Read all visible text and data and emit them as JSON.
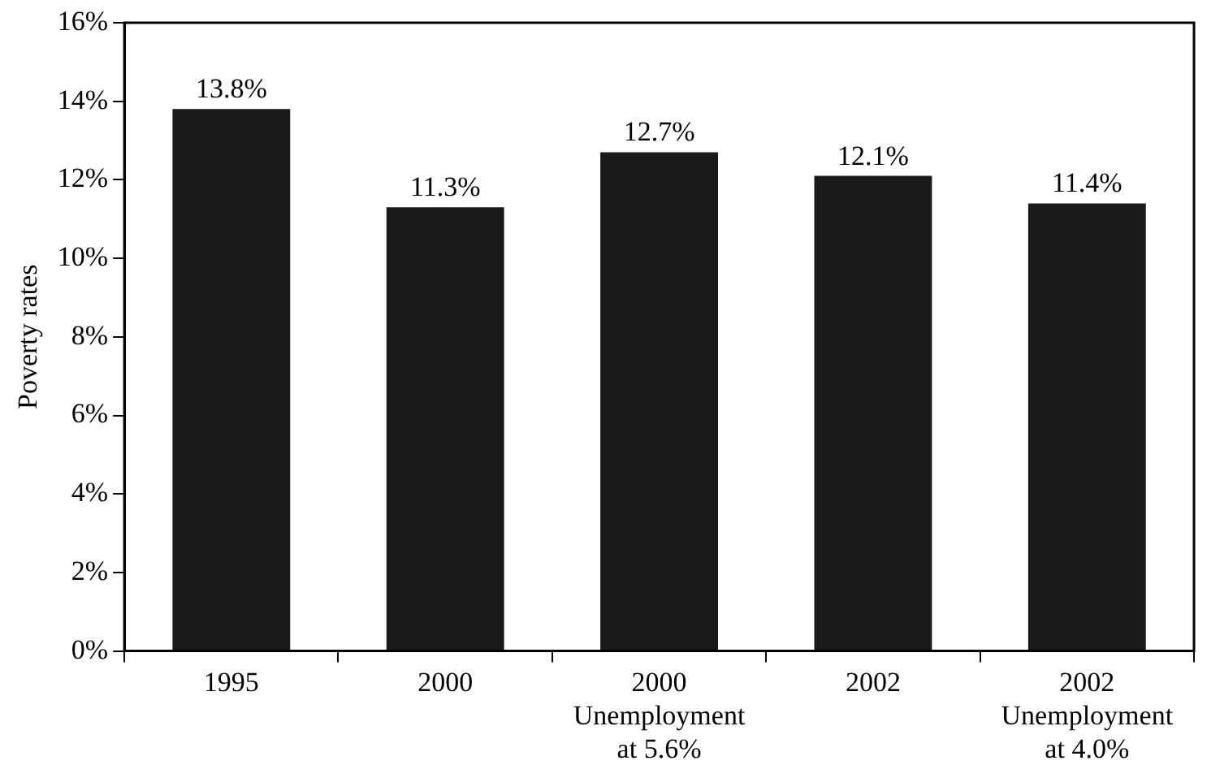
{
  "chart_data": {
    "type": "bar",
    "ylabel": "Poverty rates",
    "categories": [
      "1995",
      "2000",
      "2000\nUnemployment\nat 5.6%",
      "2002",
      "2002\nUnemployment\nat 4.0%"
    ],
    "values": [
      13.8,
      11.3,
      12.7,
      12.1,
      11.4
    ],
    "value_labels": [
      "13.8%",
      "11.3%",
      "12.7%",
      "12.1%",
      "11.4%"
    ],
    "color": "#1a1a1a",
    "ylim": [
      0,
      16
    ],
    "yticks": [
      {
        "value": 0,
        "label": "0%"
      },
      {
        "value": 2,
        "label": "2%"
      },
      {
        "value": 4,
        "label": "4%"
      },
      {
        "value": 6,
        "label": "6%"
      },
      {
        "value": 8,
        "label": "8%"
      },
      {
        "value": 10,
        "label": "10%"
      },
      {
        "value": 12,
        "label": "12%"
      },
      {
        "value": 14,
        "label": "14%"
      },
      {
        "value": 16,
        "label": "16%"
      }
    ],
    "grid": false,
    "legend": false
  }
}
